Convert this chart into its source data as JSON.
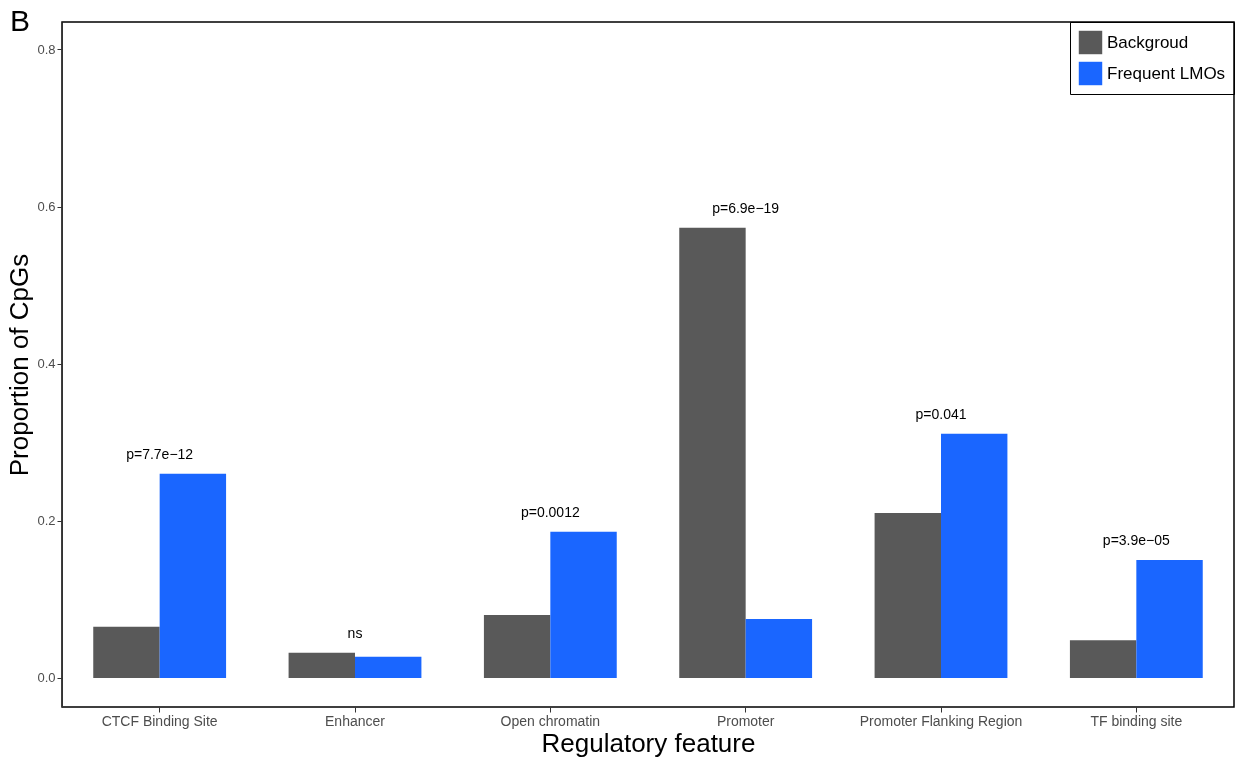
{
  "chart_data": {
    "type": "bar",
    "xlabel": "Regulatory feature",
    "ylabel": "Proportion of CpGs",
    "categories": [
      "CTCF Binding Site",
      "Enhancer",
      "Open chromatin",
      "Promoter",
      "Promoter Flanking Region",
      "TF binding site"
    ],
    "series": [
      {
        "name": "Backgroud",
        "color": "#595959",
        "values": [
          0.065,
          0.032,
          0.08,
          0.573,
          0.21,
          0.048
        ]
      },
      {
        "name": "Frequent LMOs",
        "color": "#1a66ff",
        "values": [
          0.26,
          0.027,
          0.186,
          0.075,
          0.311,
          0.15
        ]
      }
    ],
    "ylim": [
      -0.037,
      0.835
    ],
    "yticks": [
      {
        "value": 0,
        "label": "0.0"
      },
      0.2,
      0.4,
      0.6,
      0.8
    ],
    "legend": "top right",
    "grid": false,
    "annotations": [
      "B",
      "p=7.7e−12",
      "ns",
      "p=0.0012",
      "p=6.9e−19",
      "p=0.041",
      "p=3.9e−05"
    ]
  }
}
